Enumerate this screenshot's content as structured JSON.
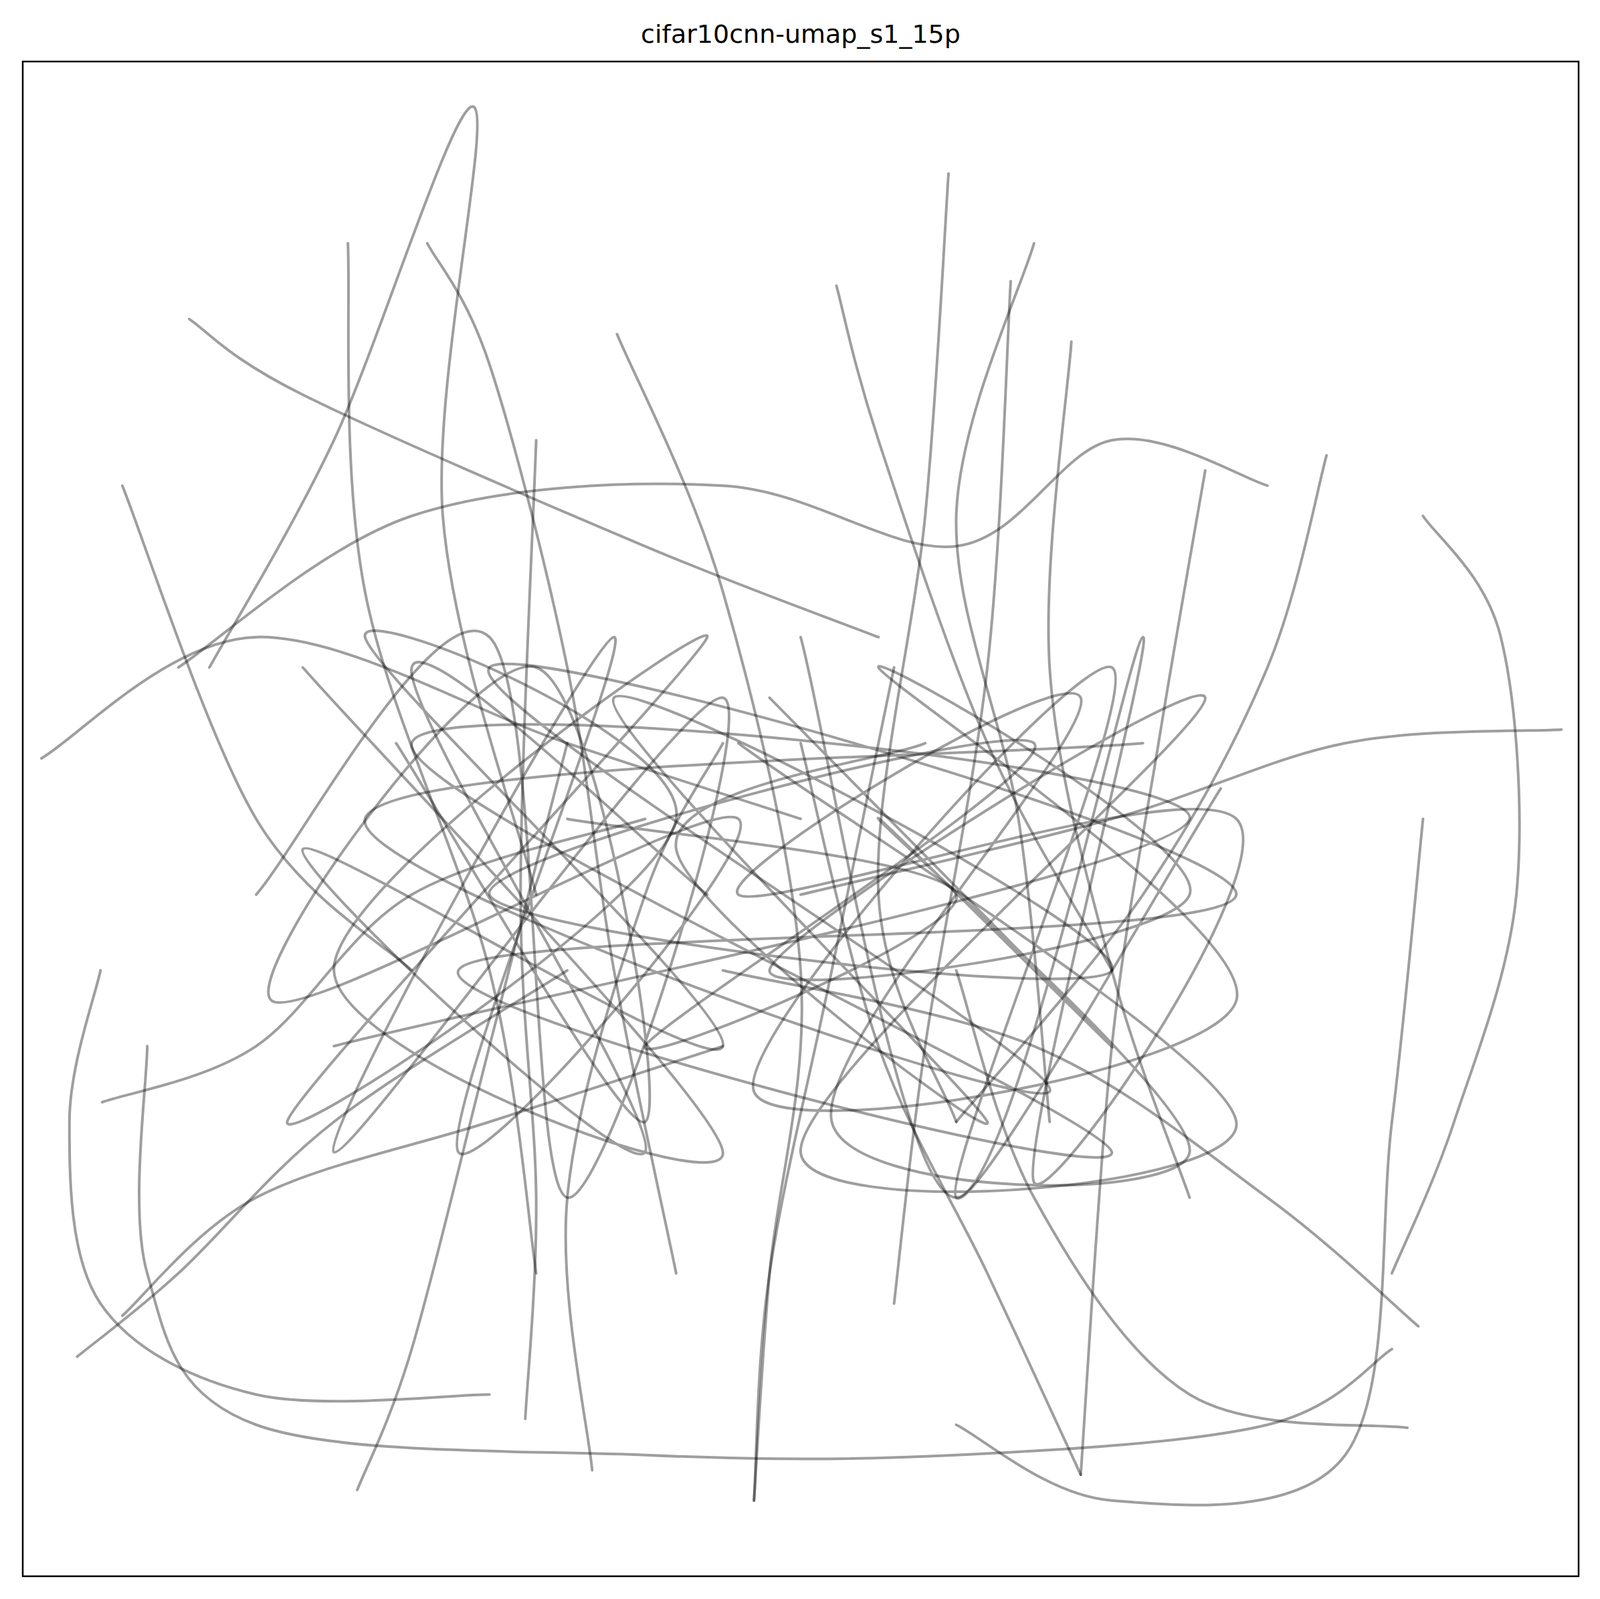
{
  "chart_data": {
    "type": "line",
    "title": "cifar10cnn-umap_s1_15p",
    "xlim": [
      0,
      100
    ],
    "ylim": [
      0,
      100
    ],
    "tick_labels": false,
    "grid": false,
    "color": "#000000",
    "line_style": "solid",
    "series": [
      {
        "x": [
          12,
          20,
          29,
          27,
          33
        ],
        "values": [
          60,
          75,
          97,
          70,
          45
        ]
      },
      {
        "x": [
          10.7,
          18,
          40,
          55
        ],
        "values": [
          83,
          78,
          68,
          62
        ]
      },
      {
        "x": [
          6.4,
          15,
          25
        ],
        "values": [
          72,
          50,
          40
        ]
      },
      {
        "x": [
          1.2,
          15,
          35,
          50
        ],
        "values": [
          54,
          62,
          55,
          50
        ]
      },
      {
        "x": [
          20.9,
          22,
          30,
          33
        ],
        "values": [
          88,
          65,
          40,
          20
        ]
      },
      {
        "x": [
          38.2,
          45,
          50,
          48,
          47
        ],
        "values": [
          82,
          65,
          40,
          20,
          5
        ]
      },
      {
        "x": [
          59.5,
          58,
          55,
          60
        ],
        "values": [
          92.6,
          70,
          45,
          30
        ]
      },
      {
        "x": [
          52.3,
          55,
          62,
          70
        ],
        "values": [
          85.2,
          75,
          55,
          40
        ]
      },
      {
        "x": [
          63.5,
          62,
          58,
          56
        ],
        "values": [
          85.5,
          60,
          35,
          18
        ]
      },
      {
        "x": [
          67.4,
          66,
          70,
          75
        ],
        "values": [
          81.5,
          60,
          40,
          25
        ]
      },
      {
        "x": [
          76,
          73,
          70,
          68
        ],
        "values": [
          73,
          55,
          35,
          6.7
        ]
      },
      {
        "x": [
          83.8,
          80,
          72,
          60
        ],
        "values": [
          74,
          60,
          45,
          30
        ]
      },
      {
        "x": [
          98.9,
          85,
          70,
          50
        ],
        "values": [
          55.9,
          55,
          50,
          45
        ]
      },
      {
        "x": [
          89.7,
          80,
          65,
          45
        ],
        "values": [
          16.5,
          25,
          35,
          40
        ]
      },
      {
        "x": [
          89,
          75,
          65,
          60
        ],
        "values": [
          9.8,
          12,
          25,
          40
        ]
      },
      {
        "x": [
          68,
          62,
          55,
          50
        ],
        "values": [
          6.7,
          20,
          35,
          55
        ]
      },
      {
        "x": [
          47,
          48,
          52,
          56
        ],
        "values": [
          5,
          20,
          40,
          60
        ]
      },
      {
        "x": [
          21.5,
          25,
          30,
          35
        ],
        "values": [
          5.7,
          15,
          35,
          55
        ]
      },
      {
        "x": [
          3.5,
          10,
          20,
          35
        ],
        "values": [
          14.5,
          20,
          30,
          40
        ]
      },
      {
        "x": [
          5.1,
          15,
          25,
          40
        ],
        "values": [
          31.3,
          35,
          45,
          50
        ]
      },
      {
        "x": [
          6.4,
          15,
          30,
          45
        ],
        "values": [
          17.2,
          25,
          30,
          35
        ]
      },
      {
        "x": [
          32.3,
          33,
          32,
          33
        ],
        "values": [
          10.4,
          25,
          45,
          75
        ]
      },
      {
        "x": [
          36.6,
          35,
          40,
          45
        ],
        "values": [
          7,
          25,
          45,
          55
        ]
      },
      {
        "x": [
          10,
          25,
          45,
          60,
          70,
          80
        ],
        "values": [
          60,
          70,
          72,
          68,
          75,
          72
        ]
      },
      {
        "x": [
          8,
          8,
          15,
          40,
          60,
          80,
          88
        ],
        "values": [
          35,
          20,
          10,
          8,
          8,
          10,
          15
        ]
      },
      {
        "x": [
          90,
          95,
          96,
          92,
          88
        ],
        "values": [
          70,
          62,
          45,
          30,
          20
        ]
      },
      {
        "x": [
          5,
          3,
          5,
          15,
          30
        ],
        "values": [
          40,
          30,
          18,
          12,
          12
        ]
      },
      {
        "x": [
          60,
          70,
          85,
          88,
          90
        ],
        "values": [
          10,
          5,
          8,
          30,
          50
        ]
      },
      {
        "x": [
          26,
          30,
          35,
          38,
          42
        ],
        "values": [
          88,
          80,
          60,
          40,
          20
        ]
      },
      {
        "x": [
          65,
          60,
          64,
          66
        ],
        "values": [
          88,
          70,
          50,
          30
        ]
      },
      {
        "x": [
          18,
          45,
          20,
          44,
          17,
          42,
          22,
          45,
          18,
          40,
          25,
          44
        ],
        "values": [
          60,
          28,
          40,
          62,
          30,
          50,
          62,
          35,
          48,
          28,
          60,
          45
        ]
      },
      {
        "x": [
          15,
          30,
          35,
          45,
          20,
          38,
          28,
          46,
          16,
          33,
          40,
          24
        ],
        "values": [
          45,
          62,
          25,
          58,
          28,
          62,
          28,
          50,
          38,
          60,
          30,
          55
        ]
      },
      {
        "x": [
          46,
          78,
          50,
          76,
          48,
          75,
          55,
          78,
          47,
          70,
          60,
          77
        ],
        "values": [
          55,
          30,
          28,
          58,
          40,
          45,
          60,
          38,
          32,
          60,
          25,
          52
        ]
      },
      {
        "x": [
          50,
          60,
          72,
          65,
          78,
          46,
          68,
          52,
          75,
          55,
          70,
          48
        ],
        "values": [
          62,
          25,
          62,
          26,
          50,
          45,
          58,
          30,
          28,
          50,
          35,
          58
        ]
      },
      {
        "x": [
          35,
          60,
          40,
          65,
          30,
          70,
          38,
          62,
          42,
          58
        ],
        "values": [
          50,
          45,
          35,
          55,
          45,
          40,
          58,
          30,
          48,
          55
        ]
      },
      {
        "x": [
          20,
          75,
          25,
          70,
          28,
          78,
          30,
          66,
          22,
          72
        ],
        "values": [
          35,
          50,
          55,
          28,
          40,
          45,
          60,
          32,
          50,
          55
        ]
      }
    ]
  }
}
